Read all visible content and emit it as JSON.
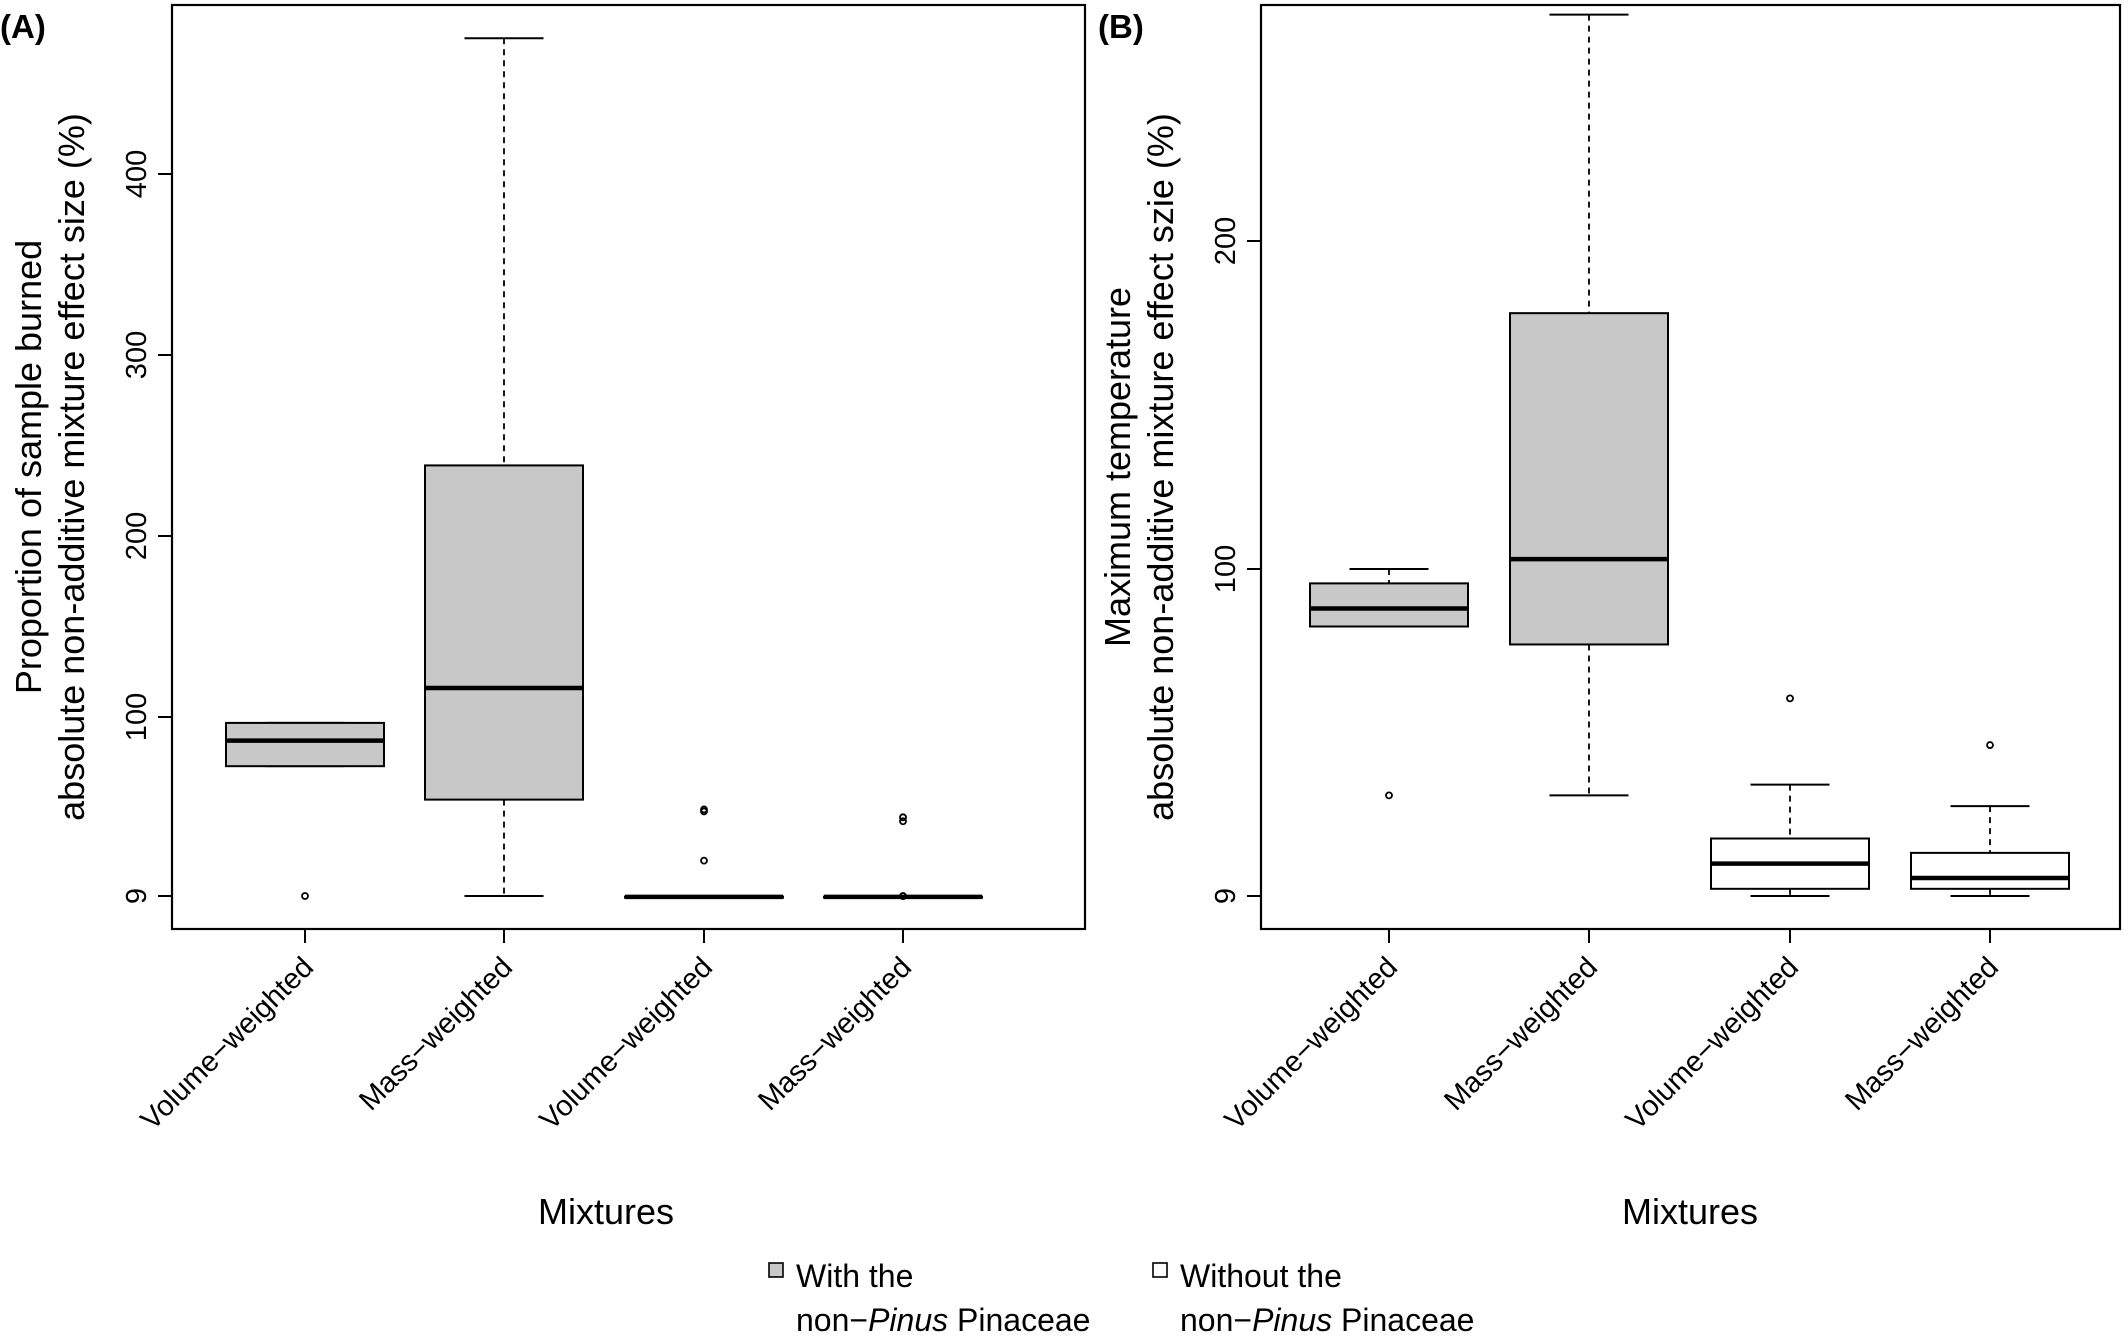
{
  "chart_data": [
    {
      "type": "boxplot",
      "panel_label": "(A)",
      "xlabel": "Mixtures",
      "ylabel_lines": [
        "Proportion of sample burned",
        "absolute non-additive mixture effect size (%)"
      ],
      "y_ticks": [
        9,
        100,
        200,
        300,
        400
      ],
      "y_tick_labels": [
        "9",
        "100",
        "200",
        "300",
        "400"
      ],
      "categories": [
        "Volume−weighted",
        "Mass−weighted",
        "Volume−weighted",
        "Mass−weighted"
      ],
      "series": [
        {
          "name": "With the non−Pinus Pinaceae",
          "fill": "#c8c8c8",
          "boxes": [
            {
              "category": 0,
              "min": 75,
              "q1": 75,
              "median": 88,
              "q3": 97,
              "max": 97,
              "outliers": [
                9
              ]
            },
            {
              "category": 1,
              "min": 9,
              "q1": 58,
              "median": 116,
              "q3": 239,
              "max": 475,
              "outliers": []
            }
          ]
        },
        {
          "name": "Without the non−Pinus Pinaceae",
          "fill": "#ffffff",
          "boxes": [
            {
              "category": 2,
              "min": 0,
              "q1": 0,
              "median": 1,
              "q3": 3,
              "max": 6,
              "outliers": [
                52,
                53,
                27
              ]
            },
            {
              "category": 3,
              "min": 0,
              "q1": 0,
              "median": 1,
              "q3": 3,
              "max": 7,
              "outliers": [
                8,
                9,
                47,
                49
              ]
            }
          ]
        }
      ]
    },
    {
      "type": "boxplot",
      "panel_label": "(B)",
      "xlabel": "Mixtures",
      "ylabel_lines": [
        "Maximum temperature",
        "absolute non-additive mixture effect szie (%)"
      ],
      "y_ticks": [
        9,
        100,
        200
      ],
      "y_tick_labels": [
        "9",
        "100",
        "200"
      ],
      "categories": [
        "Volume−weighted",
        "Mass−weighted",
        "Volume−weighted",
        "Mass−weighted"
      ],
      "series": [
        {
          "name": "With the non−Pinus Pinaceae",
          "fill": "#c8c8c8",
          "boxes": [
            {
              "category": 0,
              "min": 84,
              "q1": 84,
              "median": 89,
              "q3": 96,
              "max": 100,
              "outliers": [
                37
              ]
            },
            {
              "category": 1,
              "min": 37,
              "q1": 79,
              "median": 103,
              "q3": 178,
              "max": 269,
              "outliers": []
            }
          ]
        },
        {
          "name": "Without the non−Pinus Pinaceae",
          "fill": "#ffffff",
          "boxes": [
            {
              "category": 2,
              "min": 9,
              "q1": 11,
              "median": 18,
              "q3": 25,
              "max": 40,
              "outliers": [
                64
              ]
            },
            {
              "category": 3,
              "min": 9,
              "q1": 11,
              "median": 14,
              "q3": 21,
              "max": 34,
              "outliers": [
                51
              ]
            }
          ]
        }
      ]
    }
  ],
  "legend": [
    {
      "line1": "With the",
      "line2_prefix": "non−",
      "line2_italic": "Pinus",
      "line2_suffix": " Pinaceae",
      "fill": "#c8c8c8"
    },
    {
      "line1": "Without the",
      "line2_prefix": "non−",
      "line2_italic": "Pinus",
      "line2_suffix": " Pinaceae",
      "fill": "#ffffff"
    }
  ],
  "colors": {
    "with_fill": "#c8c8c8",
    "without_fill": "#ffffff",
    "stroke": "#000000"
  }
}
